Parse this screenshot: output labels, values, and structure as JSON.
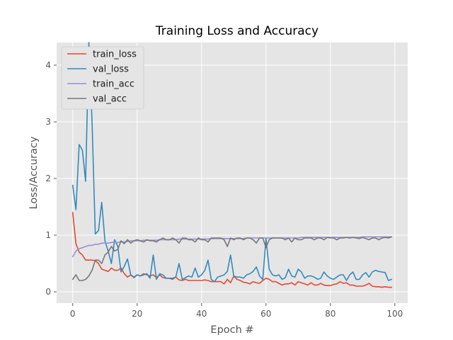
{
  "chart_data": {
    "type": "line",
    "title": "Training Loss and Accuracy",
    "xlabel": "Epoch #",
    "ylabel": "Loss/Accuracy",
    "xlim": [
      -5,
      104
    ],
    "ylim": [
      -0.2,
      4.4
    ],
    "xticks": [
      0,
      20,
      40,
      60,
      80,
      100
    ],
    "yticks": [
      0,
      1,
      2,
      3,
      4
    ],
    "grid": true,
    "legend_position": "top-left",
    "background": "#E5E5E5",
    "series": [
      {
        "name": "train_loss",
        "color": "#E24A33",
        "values": [
          1.4,
          0.85,
          0.7,
          0.65,
          0.56,
          0.56,
          0.56,
          0.55,
          0.5,
          0.4,
          0.38,
          0.36,
          0.42,
          0.38,
          0.38,
          0.42,
          0.32,
          0.26,
          0.3,
          0.25,
          0.3,
          0.28,
          0.32,
          0.3,
          0.28,
          0.3,
          0.25,
          0.3,
          0.25,
          0.24,
          0.24,
          0.24,
          0.26,
          0.21,
          0.2,
          0.22,
          0.2,
          0.2,
          0.2,
          0.2,
          0.2,
          0.21,
          0.2,
          0.18,
          0.18,
          0.18,
          0.18,
          0.14,
          0.22,
          0.16,
          0.28,
          0.22,
          0.2,
          0.17,
          0.16,
          0.14,
          0.18,
          0.16,
          0.15,
          0.2,
          0.24,
          0.22,
          0.18,
          0.18,
          0.15,
          0.12,
          0.14,
          0.14,
          0.16,
          0.12,
          0.18,
          0.16,
          0.14,
          0.12,
          0.16,
          0.12,
          0.12,
          0.15,
          0.12,
          0.11,
          0.11,
          0.13,
          0.14,
          0.18,
          0.15,
          0.16,
          0.12,
          0.12,
          0.1,
          0.1,
          0.1,
          0.12,
          0.15,
          0.1,
          0.09,
          0.09,
          0.08,
          0.09,
          0.08,
          0.08
        ]
      },
      {
        "name": "val_loss",
        "color": "#348ABD",
        "values": [
          1.88,
          1.45,
          2.6,
          2.5,
          1.95,
          4.4,
          3.0,
          1.02,
          1.08,
          1.58,
          0.9,
          0.72,
          0.5,
          0.92,
          0.8,
          0.35,
          0.45,
          0.58,
          0.3,
          0.26,
          0.3,
          0.28,
          0.3,
          0.32,
          0.24,
          0.65,
          0.22,
          0.32,
          0.3,
          0.24,
          0.24,
          0.22,
          0.26,
          0.5,
          0.22,
          0.25,
          0.28,
          0.26,
          0.42,
          0.26,
          0.3,
          0.38,
          0.56,
          0.22,
          0.18,
          0.26,
          0.28,
          0.3,
          0.36,
          0.65,
          0.28,
          0.26,
          0.26,
          0.24,
          0.3,
          0.32,
          0.36,
          0.44,
          0.28,
          0.22,
          0.94,
          0.4,
          0.3,
          0.28,
          0.3,
          0.22,
          0.25,
          0.4,
          0.28,
          0.26,
          0.4,
          0.35,
          0.24,
          0.28,
          0.28,
          0.26,
          0.22,
          0.24,
          0.35,
          0.28,
          0.24,
          0.22,
          0.26,
          0.3,
          0.3,
          0.2,
          0.3,
          0.35,
          0.22,
          0.22,
          0.3,
          0.34,
          0.26,
          0.35,
          0.38,
          0.36,
          0.35,
          0.34,
          0.2,
          0.22
        ]
      },
      {
        "name": "train_acc",
        "color": "#988ED5",
        "values": [
          0.62,
          0.72,
          0.76,
          0.78,
          0.8,
          0.82,
          0.82,
          0.84,
          0.84,
          0.86,
          0.86,
          0.86,
          0.87,
          0.88,
          0.87,
          0.88,
          0.88,
          0.89,
          0.9,
          0.9,
          0.9,
          0.9,
          0.91,
          0.91,
          0.91,
          0.91,
          0.91,
          0.92,
          0.92,
          0.92,
          0.92,
          0.92,
          0.92,
          0.93,
          0.93,
          0.93,
          0.93,
          0.93,
          0.93,
          0.93,
          0.93,
          0.93,
          0.93,
          0.94,
          0.94,
          0.94,
          0.94,
          0.94,
          0.94,
          0.94,
          0.94,
          0.94,
          0.94,
          0.94,
          0.95,
          0.95,
          0.95,
          0.95,
          0.95,
          0.95,
          0.95,
          0.95,
          0.95,
          0.95,
          0.95,
          0.95,
          0.95,
          0.95,
          0.95,
          0.95,
          0.95,
          0.96,
          0.96,
          0.96,
          0.96,
          0.96,
          0.96,
          0.96,
          0.96,
          0.96,
          0.96,
          0.96,
          0.96,
          0.96,
          0.96,
          0.96,
          0.96,
          0.96,
          0.96,
          0.96,
          0.97,
          0.97,
          0.97,
          0.97,
          0.97,
          0.97,
          0.97,
          0.97,
          0.97,
          0.97
        ]
      },
      {
        "name": "val_acc",
        "color": "#777777",
        "values": [
          0.22,
          0.3,
          0.2,
          0.2,
          0.22,
          0.28,
          0.38,
          0.56,
          0.56,
          0.5,
          0.65,
          0.7,
          0.8,
          0.72,
          0.75,
          0.9,
          0.85,
          0.92,
          0.86,
          0.9,
          0.92,
          0.9,
          0.88,
          0.92,
          0.9,
          0.9,
          0.88,
          0.92,
          0.95,
          0.92,
          0.92,
          0.95,
          0.92,
          0.86,
          0.95,
          0.95,
          0.92,
          0.92,
          0.88,
          0.95,
          0.92,
          0.92,
          0.88,
          0.95,
          0.95,
          0.95,
          0.95,
          0.92,
          0.8,
          0.95,
          0.92,
          0.95,
          0.95,
          0.92,
          0.95,
          0.95,
          0.92,
          0.86,
          0.95,
          0.95,
          0.78,
          0.92,
          0.95,
          0.95,
          0.95,
          0.95,
          0.92,
          0.95,
          0.88,
          0.95,
          0.92,
          0.92,
          0.95,
          0.95,
          0.95,
          0.92,
          0.95,
          0.95,
          0.92,
          0.96,
          0.95,
          0.95,
          0.92,
          0.95,
          0.95,
          0.96,
          0.95,
          0.96,
          0.95,
          0.94,
          0.96,
          0.94,
          0.92,
          0.95,
          0.95,
          0.92,
          0.95,
          0.96,
          0.95,
          0.97
        ]
      }
    ]
  }
}
